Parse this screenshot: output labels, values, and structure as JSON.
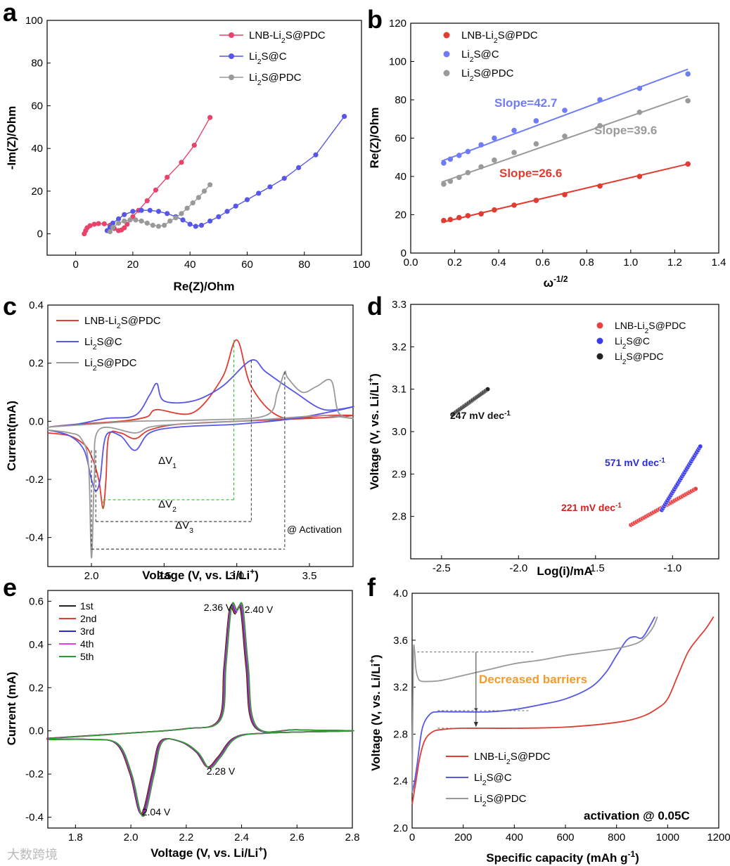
{
  "watermark": "大数跨境",
  "chart_data": [
    {
      "panel": "a",
      "type": "line",
      "xlabel": "Re(Z)/Ohm",
      "ylabel": "-Im(Z)/Ohm",
      "xlim": [
        -10,
        100
      ],
      "ylim": [
        -10,
        100
      ],
      "xticks": [
        0,
        20,
        40,
        60,
        80,
        100
      ],
      "yticks": [
        0,
        20,
        40,
        60,
        80,
        100
      ],
      "legend_position": "top-right",
      "series": [
        {
          "label": [
            "LNB-Li",
            "2",
            "S@PDC"
          ],
          "color": "#e8436b",
          "marker": "circle",
          "x": [
            3,
            3.5,
            4,
            5,
            6.5,
            8,
            10,
            12,
            13.5,
            15,
            16,
            17,
            18,
            20,
            22,
            25,
            28,
            32,
            37,
            41.5,
            47
          ],
          "y": [
            0,
            1.5,
            2.8,
            3.8,
            4.5,
            4.8,
            4.7,
            4,
            2.5,
            1.5,
            1.8,
            2.8,
            4.5,
            8,
            11,
            15.5,
            20.5,
            26.5,
            33.5,
            41.5,
            54.5
          ]
        },
        {
          "label": [
            "Li",
            "2",
            "S@C"
          ],
          "color": "#5656e8",
          "marker": "circle",
          "x": [
            11,
            12,
            13,
            15,
            17,
            20,
            23,
            26,
            29,
            32,
            35,
            37.5,
            40,
            42,
            44,
            47,
            50,
            53,
            56,
            60,
            64,
            68,
            73,
            78,
            84,
            94
          ],
          "y": [
            1.5,
            3,
            5,
            7,
            9,
            10.5,
            11,
            11,
            10.5,
            9.5,
            8,
            6.5,
            4.5,
            3.5,
            4,
            6,
            8,
            10.5,
            13,
            16,
            19,
            22,
            26,
            31,
            37,
            55
          ]
        },
        {
          "label": [
            "Li",
            "2",
            "S@PDC"
          ],
          "color": "#999999",
          "marker": "circle",
          "x": [
            12,
            13,
            15,
            17,
            19,
            21,
            23,
            25,
            27,
            29,
            31,
            33,
            35,
            37,
            39,
            41,
            43,
            45,
            47
          ],
          "y": [
            1,
            3,
            5,
            6,
            6.5,
            6.5,
            6,
            5,
            4,
            3.5,
            4,
            6,
            7.5,
            9.5,
            12,
            14.5,
            17,
            20,
            23
          ]
        }
      ]
    },
    {
      "panel": "b",
      "type": "scatter",
      "xlabel": "ω-1/2",
      "ylabel": "Re(Z)/Ohm",
      "xlim": [
        0.0,
        1.4
      ],
      "ylim": [
        0,
        120
      ],
      "xticks": [
        "0.0",
        "0.2",
        "0.4",
        "0.6",
        "0.8",
        "1.0",
        "1.2",
        "1.4"
      ],
      "yticks": [
        0,
        20,
        40,
        60,
        80,
        100,
        120
      ],
      "legend_position": "top-left",
      "series": [
        {
          "label": [
            "LNB-Li",
            "2",
            "S@PDC"
          ],
          "color": "#e03c31",
          "x": [
            0.15,
            0.18,
            0.22,
            0.26,
            0.32,
            0.38,
            0.47,
            0.57,
            0.7,
            0.86,
            1.04,
            1.26
          ],
          "y": [
            17,
            17.5,
            18.5,
            19.5,
            20.5,
            22.5,
            25,
            27.5,
            30.5,
            35,
            40,
            46.5
          ],
          "fit": [
            [
              0.14,
              16
            ],
            [
              1.26,
              46.5
            ]
          ],
          "slope_label": "Slope=26.6"
        },
        {
          "label": [
            "Li",
            "2",
            "S@C"
          ],
          "color": "#6f7cf5",
          "x": [
            0.15,
            0.18,
            0.22,
            0.26,
            0.32,
            0.38,
            0.47,
            0.57,
            0.7,
            0.86,
            1.04,
            1.26
          ],
          "y": [
            47,
            49,
            51,
            53,
            56.5,
            60,
            64,
            69,
            74.5,
            80,
            86,
            93.5
          ],
          "fit": [
            [
              0.14,
              48
            ],
            [
              1.26,
              96
            ]
          ],
          "slope_label": "Slope=42.7"
        },
        {
          "label": [
            "Li",
            "2",
            "S@PDC"
          ],
          "color": "#9a9a9a",
          "x": [
            0.15,
            0.18,
            0.22,
            0.26,
            0.32,
            0.38,
            0.47,
            0.57,
            0.7,
            0.86,
            1.04,
            1.26
          ],
          "y": [
            36,
            37.5,
            39.5,
            42,
            45,
            48.5,
            52.5,
            57,
            61,
            66.5,
            73.5,
            79.5
          ],
          "fit": [
            [
              0.14,
              37
            ],
            [
              1.26,
              82
            ]
          ],
          "slope_label": "Slope=39.6"
        }
      ]
    },
    {
      "panel": "c",
      "type": "line",
      "xlabel": "Voltage (V, vs. Li/Li+)",
      "ylabel": "Current(mA)",
      "xlim": [
        1.7,
        3.8
      ],
      "ylim": [
        -0.5,
        0.4
      ],
      "xticks": [
        "2.0",
        "2.5",
        "3.0",
        "3.5"
      ],
      "yticks": [
        "-0.4",
        "-0.2",
        "0.0",
        "0.2",
        "0.4"
      ],
      "legend_position": "top-left",
      "annotations": [
        "ΔV1",
        "ΔV2",
        "ΔV3",
        "@ Activation"
      ],
      "series": [
        {
          "label": [
            "LNB-Li",
            "2",
            "S@PDC"
          ],
          "color": "#e03c31"
        },
        {
          "label": [
            "Li",
            "2",
            "S@C"
          ],
          "color": "#5656e8"
        },
        {
          "label": [
            "Li",
            "2",
            "S@PDC"
          ],
          "color": "#9a9a9a"
        }
      ]
    },
    {
      "panel": "d",
      "type": "scatter",
      "xlabel": "Log(i)/mA",
      "ylabel": "Voltage (V, vs. Li/Li+)",
      "xlim": [
        -2.7,
        -0.7
      ],
      "ylim": [
        2.7,
        3.3
      ],
      "xticks": [
        "-2.5",
        "-2.0",
        "-1.5",
        "-1.0"
      ],
      "yticks": [
        "2.8",
        "2.9",
        "3.0",
        "3.1",
        "3.2",
        "3.3"
      ],
      "legend_position": "top-right",
      "series": [
        {
          "label": [
            "LNB-Li",
            "2",
            "S@PDC"
          ],
          "color": "#e84343",
          "from": [
            -1.27,
            2.78
          ],
          "to": [
            -0.85,
            2.865
          ],
          "tafel": "221 mV dec",
          "tafel_sup": "-1"
        },
        {
          "label": [
            "Li",
            "2",
            "S@C"
          ],
          "color": "#3b3bef",
          "from": [
            -1.07,
            2.815
          ],
          "to": [
            -0.82,
            2.965
          ],
          "tafel": "571 mV dec",
          "tafel_sup": "-1"
        },
        {
          "label": [
            "Li",
            "2",
            "S@PDC"
          ],
          "color": "#222222",
          "from": [
            -2.43,
            3.04
          ],
          "to": [
            -2.2,
            3.1
          ],
          "tafel": "247 mV dec",
          "tafel_sup": "-1"
        }
      ]
    },
    {
      "panel": "e",
      "type": "line",
      "xlabel": "Voltage (V, vs. Li/Li+)",
      "ylabel": "Current (mA)",
      "xlim": [
        1.7,
        2.8
      ],
      "ylim": [
        -0.45,
        0.65
      ],
      "xticks": [
        "1.8",
        "2.0",
        "2.2",
        "2.4",
        "2.6",
        "2.8"
      ],
      "yticks": [
        "-0.4",
        "-0.2",
        "0.0",
        "0.2",
        "0.4",
        "0.6"
      ],
      "legend_position": "top-left",
      "peak_labels": [
        "2.36 V",
        "2.40 V",
        "2.28 V",
        "2.04 V"
      ],
      "series": [
        {
          "name": "1st",
          "color": "#222222"
        },
        {
          "name": "2nd",
          "color": "#e03c31"
        },
        {
          "name": "3rd",
          "color": "#2b2bd6"
        },
        {
          "name": "4th",
          "color": "#e23fe2"
        },
        {
          "name": "5th",
          "color": "#2e9a2e"
        }
      ]
    },
    {
      "panel": "f",
      "type": "line",
      "xlabel": "Specific capacity (mAh g-1)",
      "ylabel": "Voltage (V, vs. Li/Li+)",
      "xlim": [
        0,
        1200
      ],
      "ylim": [
        2.0,
        4.0
      ],
      "xticks": [
        0,
        200,
        400,
        600,
        800,
        1000,
        1200
      ],
      "yticks": [
        "2.0",
        "2.4",
        "2.8",
        "3.2",
        "3.6",
        "4.0"
      ],
      "legend_position": "bottom-left",
      "annotations": [
        "Decreased barriers",
        "activation @ 0.05C"
      ],
      "series": [
        {
          "label": [
            "LNB-Li",
            "2",
            "S@PDC"
          ],
          "color": "#e03c31",
          "x": [
            0,
            15,
            30,
            50,
            80,
            120,
            200,
            400,
            600,
            800,
            900,
            960,
            1000,
            1040,
            1080,
            1120,
            1150,
            1180
          ],
          "y": [
            2.2,
            2.4,
            2.6,
            2.75,
            2.82,
            2.84,
            2.85,
            2.85,
            2.86,
            2.9,
            2.95,
            3.02,
            3.1,
            3.3,
            3.5,
            3.62,
            3.7,
            3.8
          ]
        },
        {
          "label": [
            "Li",
            "2",
            "S@C"
          ],
          "color": "#5656e8",
          "x": [
            0,
            10,
            20,
            40,
            70,
            100,
            150,
            200,
            300,
            400,
            500,
            600,
            700,
            760,
            800,
            840,
            870,
            900,
            930,
            950
          ],
          "y": [
            2.3,
            2.4,
            2.55,
            2.85,
            2.97,
            2.99,
            2.99,
            2.99,
            2.99,
            3.01,
            3.05,
            3.1,
            3.2,
            3.33,
            3.47,
            3.6,
            3.63,
            3.62,
            3.72,
            3.8
          ]
        },
        {
          "label": [
            "Li",
            "2",
            "S@PDC"
          ],
          "color": "#9a9a9a",
          "x": [
            0,
            5,
            10,
            15,
            25,
            40,
            80,
            120,
            200,
            300,
            400,
            500,
            600,
            700,
            800,
            860,
            900,
            940,
            960
          ],
          "y": [
            2.3,
            3.45,
            3.5,
            3.35,
            3.27,
            3.25,
            3.25,
            3.26,
            3.3,
            3.35,
            3.4,
            3.43,
            3.47,
            3.5,
            3.53,
            3.56,
            3.6,
            3.7,
            3.8
          ]
        }
      ]
    }
  ]
}
